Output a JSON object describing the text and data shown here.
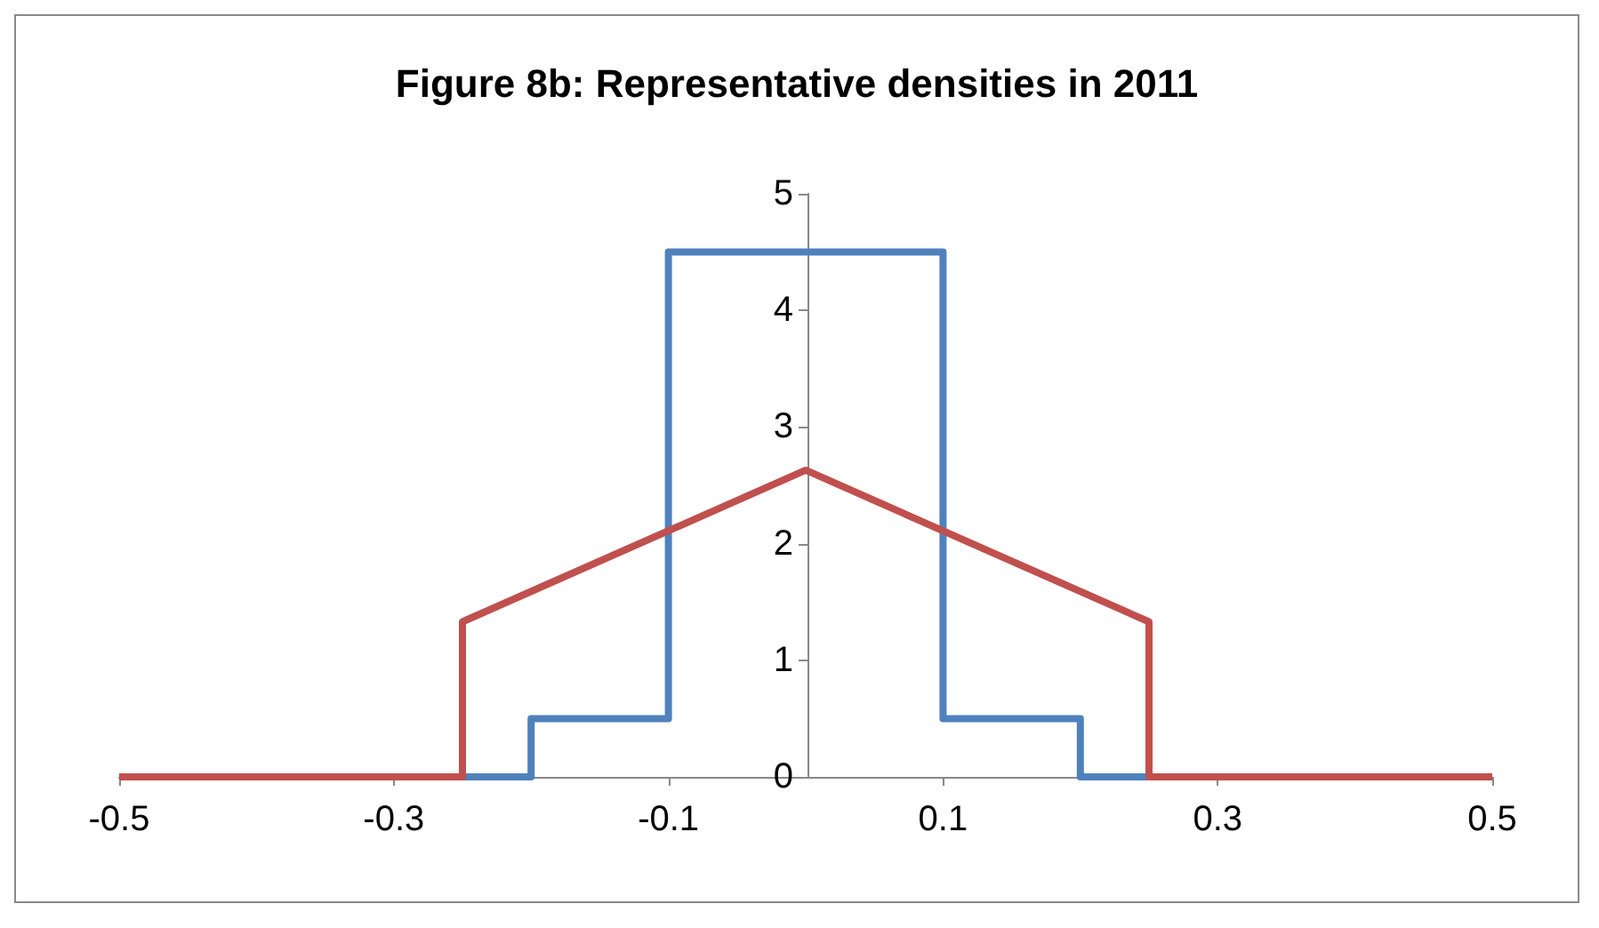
{
  "chart_data": {
    "type": "line",
    "title": "Figure 8b: Representative densities in 2011",
    "series": [
      {
        "color": "#4f81bd",
        "x": [
          -0.5,
          -0.2,
          -0.2,
          -0.1,
          -0.1,
          0.1,
          0.1,
          0.2,
          0.2,
          0.5
        ],
        "values": [
          0,
          0,
          0.5,
          0.5,
          4.5,
          4.5,
          0.5,
          0.5,
          0,
          0
        ]
      },
      {
        "color": "#c0504d",
        "x": [
          -0.5,
          -0.25,
          -0.25,
          0,
          0.25,
          0.25,
          0.5
        ],
        "values": [
          0,
          0,
          1.33,
          2.63,
          1.33,
          0,
          0
        ]
      }
    ],
    "xlim": [
      -0.5,
      0.5
    ],
    "xticks": [
      -0.5,
      -0.3,
      -0.1,
      0.1,
      0.3,
      0.5
    ],
    "ylim": [
      0,
      5
    ],
    "yticks": [
      0,
      1,
      2,
      3,
      4,
      5
    ],
    "grid": false,
    "marker": "none",
    "line_style": "solid"
  }
}
